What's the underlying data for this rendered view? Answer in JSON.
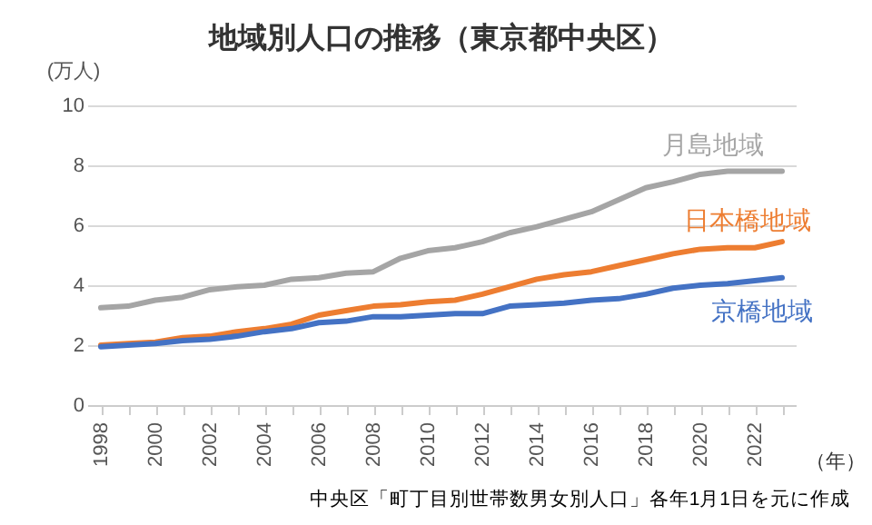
{
  "chart_data": {
    "type": "line",
    "title": "地域別人口の推移（東京都中央区）",
    "ylabel": "(万人)",
    "xlabel": "（年）",
    "categories": [
      "1998",
      null,
      "2000",
      null,
      "2002",
      null,
      "2004",
      null,
      "2006",
      null,
      "2008",
      null,
      "2010",
      null,
      "2012",
      null,
      "2014",
      null,
      "2016",
      null,
      "2018",
      null,
      "2020",
      null,
      "2022",
      null
    ],
    "series": [
      {
        "name": "月島地域",
        "color": "#a5a5a5",
        "values": [
          3.25,
          3.3,
          3.5,
          3.6,
          3.85,
          3.95,
          4.0,
          4.2,
          4.25,
          4.4,
          4.45,
          4.9,
          5.15,
          5.25,
          5.45,
          5.75,
          5.95,
          6.2,
          6.45,
          6.85,
          7.25,
          7.45,
          7.7,
          7.8,
          7.8,
          7.8
        ]
      },
      {
        "name": "日本橋地域",
        "color": "#ed7d31",
        "values": [
          2.0,
          2.05,
          2.1,
          2.25,
          2.3,
          2.45,
          2.55,
          2.7,
          3.0,
          3.15,
          3.3,
          3.35,
          3.45,
          3.5,
          3.7,
          3.95,
          4.2,
          4.35,
          4.45,
          4.65,
          4.85,
          5.05,
          5.2,
          5.25,
          5.25,
          5.45
        ]
      },
      {
        "name": "京橋地域",
        "color": "#4472c4",
        "values": [
          1.95,
          2.0,
          2.05,
          2.15,
          2.2,
          2.3,
          2.45,
          2.55,
          2.75,
          2.8,
          2.95,
          2.95,
          3.0,
          3.05,
          3.05,
          3.3,
          3.35,
          3.4,
          3.5,
          3.55,
          3.7,
          3.9,
          4.0,
          4.05,
          4.15,
          4.25
        ]
      }
    ],
    "ylim": [
      0,
      10
    ],
    "yticks": [
      0,
      2,
      4,
      6,
      8,
      10
    ],
    "grid": "y",
    "legend": false,
    "marker": "none",
    "line_style": "solid",
    "annotations": [
      "中央区「町丁目別世帯数男女別人口」各年1月1日を元に作成"
    ]
  }
}
